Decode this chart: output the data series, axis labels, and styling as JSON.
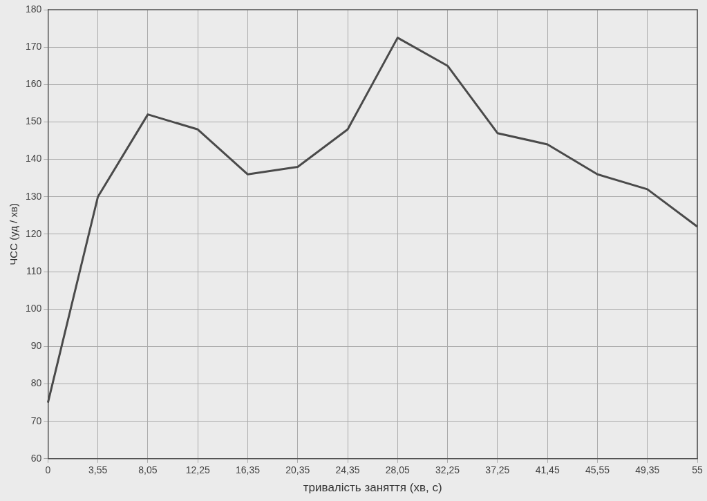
{
  "chart_data": {
    "type": "line",
    "xlabel": "тривалість заняття (хв, с)",
    "ylabel": "ЧСС (уд / хв)",
    "categories": [
      "0",
      "3,55",
      "8,05",
      "12,25",
      "16,35",
      "20,35",
      "24,35",
      "28,05",
      "32,25",
      "37,25",
      "41,45",
      "45,55",
      "49,35",
      "55"
    ],
    "series": [
      {
        "color": "#4a4a4a",
        "values": [
          75,
          130,
          152,
          148,
          136,
          138,
          148,
          172.5,
          165,
          147,
          144,
          136,
          132,
          122
        ]
      }
    ],
    "ylim": [
      60,
      180
    ],
    "yticks": [
      60,
      70,
      80,
      90,
      100,
      110,
      120,
      130,
      140,
      150,
      160,
      170,
      180
    ],
    "grid": true,
    "legend": false,
    "marker": "none",
    "line_style": "solid"
  }
}
